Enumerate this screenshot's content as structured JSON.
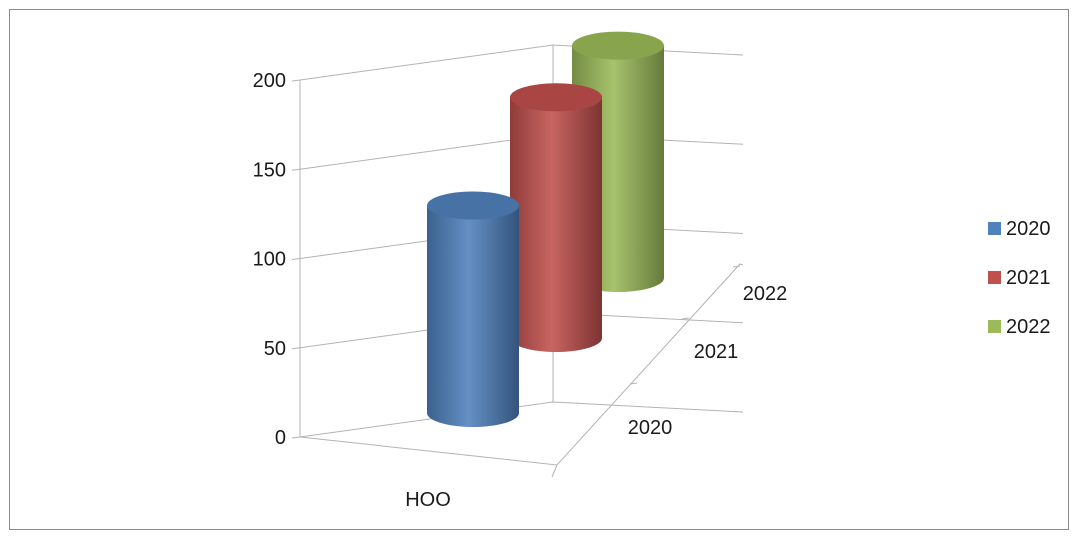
{
  "chart_data": {
    "type": "bar",
    "style": "3d-cylinder",
    "title": "",
    "xlabel": "",
    "ylabel": "",
    "categories": [
      "HOO"
    ],
    "depth_categories": [
      "2020",
      "2021",
      "2022"
    ],
    "series": [
      {
        "name": "2020",
        "color": "#4f81bd",
        "values": [
          125
        ]
      },
      {
        "name": "2021",
        "color": "#c0504d",
        "values": [
          145
        ]
      },
      {
        "name": "2022",
        "color": "#9bbb59",
        "values": [
          140
        ]
      }
    ],
    "ylim": [
      0,
      200
    ],
    "y_ticks": [
      "0",
      "50",
      "100",
      "150",
      "200"
    ],
    "grid": true,
    "legend": "right"
  }
}
